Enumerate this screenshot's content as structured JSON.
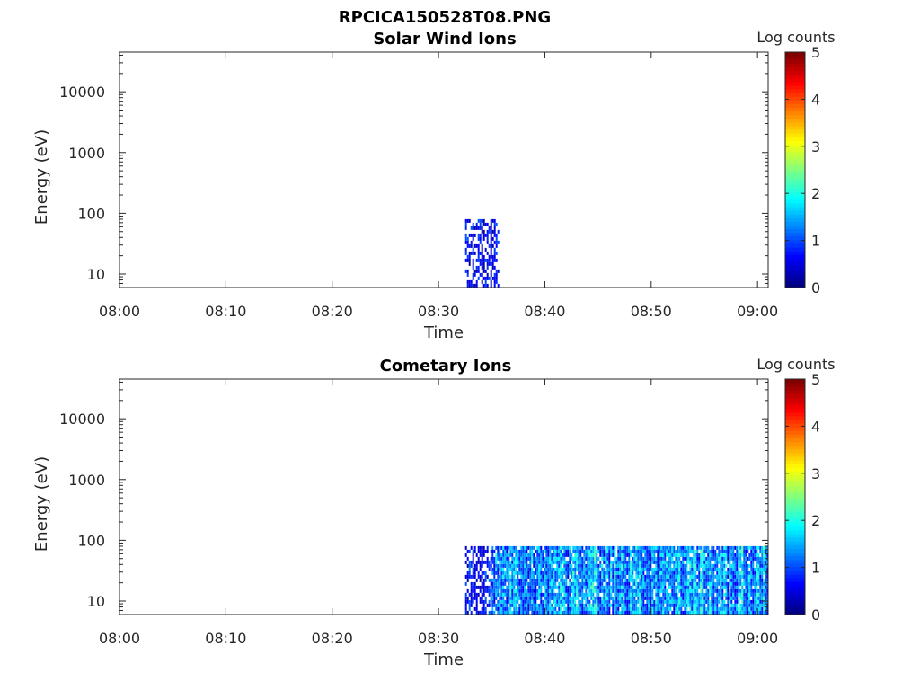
{
  "figure": {
    "title": "RPCICA150528T08.PNG"
  },
  "colors": {
    "background": "#ffffff",
    "axis": "#262626",
    "text": "#262626",
    "colormap": "jet"
  },
  "chart_data": [
    {
      "type": "heatmap",
      "title": "Solar Wind Ions",
      "xlabel": "Time",
      "ylabel": "Energy (eV)",
      "x_ticks": [
        "08:00",
        "08:10",
        "08:20",
        "08:30",
        "08:40",
        "08:50",
        "09:00"
      ],
      "y_ticks": [
        "10",
        "100",
        "1000",
        "10000"
      ],
      "y_scale": "log",
      "xlim": [
        "08:00",
        "09:01"
      ],
      "ylim": [
        6,
        45000
      ],
      "colorbar": {
        "label": "Log counts",
        "ticks": [
          "0",
          "1",
          "2",
          "3",
          "4",
          "5"
        ],
        "range": [
          0,
          5
        ]
      },
      "data_blocks": [
        {
          "x_start": "08:32.5",
          "x_end": "08:35.7",
          "energy_min": 6,
          "energy_max": 80,
          "log_counts_range": [
            0,
            1.2
          ],
          "fill_fraction": 0.55
        }
      ],
      "grid": false
    },
    {
      "type": "heatmap",
      "title": "Cometary Ions",
      "xlabel": "Time",
      "ylabel": "Energy (eV)",
      "x_ticks": [
        "08:00",
        "08:10",
        "08:20",
        "08:30",
        "08:40",
        "08:50",
        "09:00"
      ],
      "y_ticks": [
        "10",
        "100",
        "1000",
        "10000"
      ],
      "y_scale": "log",
      "xlim": [
        "08:00",
        "09:01"
      ],
      "ylim": [
        6,
        45000
      ],
      "colorbar": {
        "label": "Log counts",
        "ticks": [
          "0",
          "1",
          "2",
          "3",
          "4",
          "5"
        ],
        "range": [
          0,
          5
        ]
      },
      "data_blocks": [
        {
          "x_start": "08:32.5",
          "x_end": "08:35.0",
          "energy_min": 6,
          "energy_max": 80,
          "log_counts_range": [
            0,
            1.3
          ],
          "fill_fraction": 0.6
        },
        {
          "x_start": "08:35.0",
          "x_end": "09:01",
          "energy_min": 6,
          "energy_max": 80,
          "log_counts_range": [
            0.3,
            2.4
          ],
          "fill_fraction": 0.92
        }
      ],
      "grid": false
    }
  ]
}
